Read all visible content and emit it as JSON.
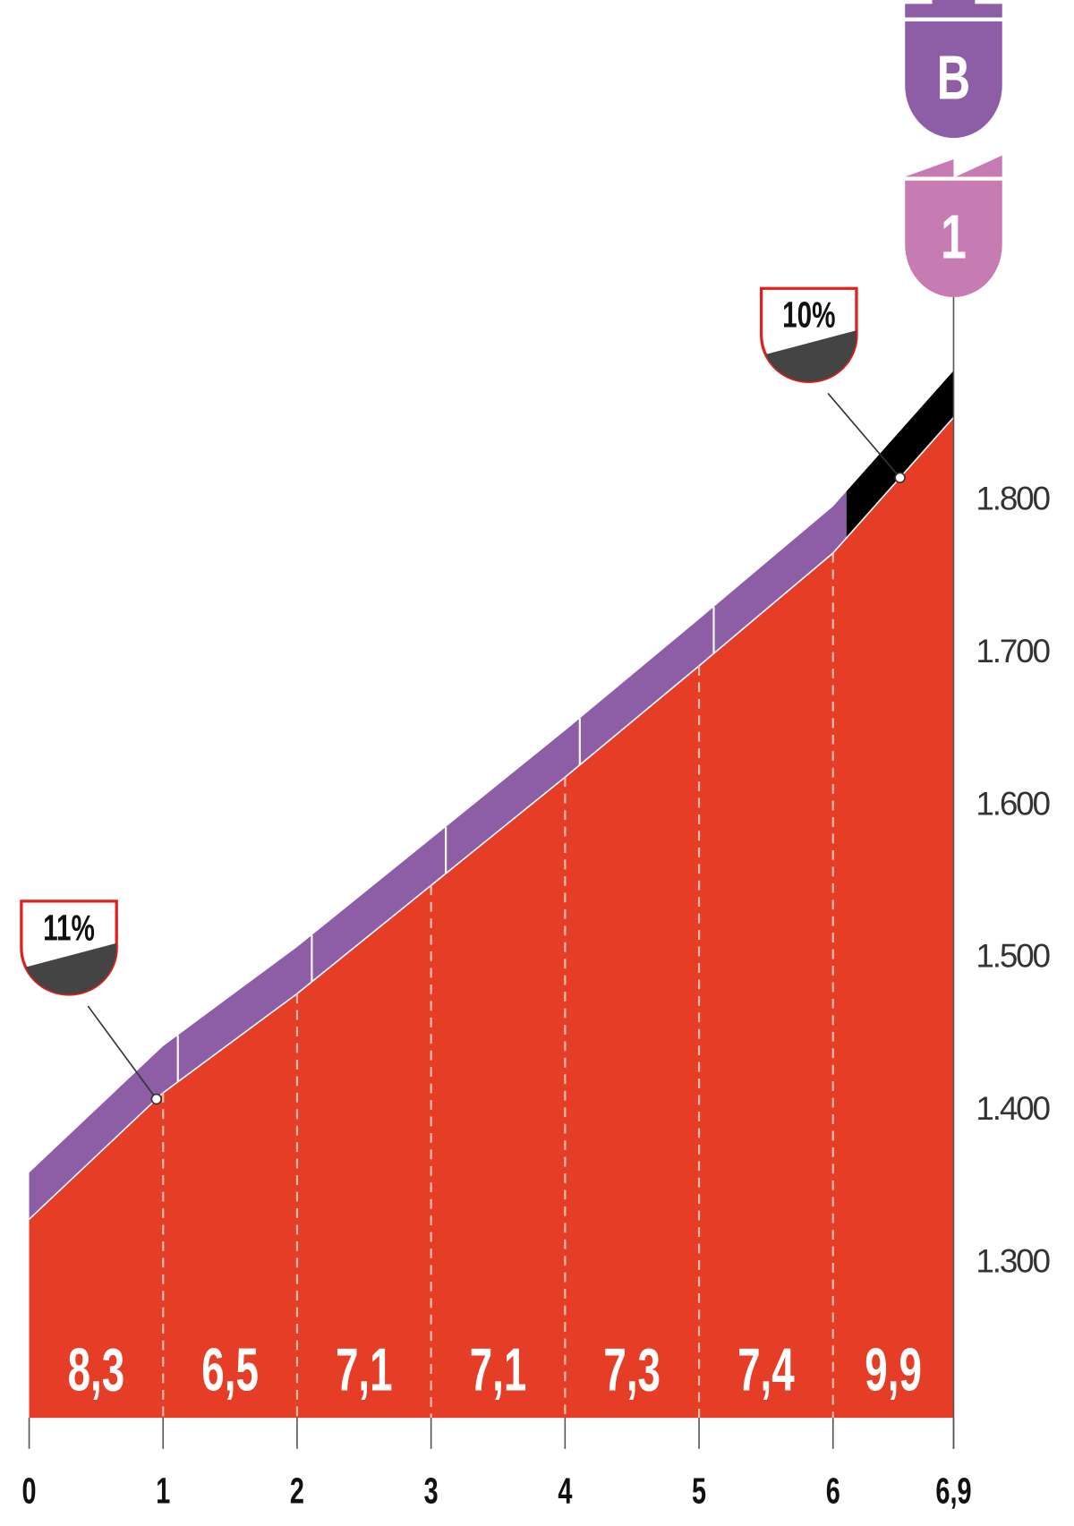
{
  "chart_data": {
    "type": "area",
    "title": "",
    "xlabel": "",
    "ylabel": "",
    "x_ticks": [
      "0",
      "1",
      "2",
      "3",
      "4",
      "5",
      "6",
      "6,9"
    ],
    "x_values": [
      0,
      1,
      2,
      3,
      4,
      5,
      6,
      6.9
    ],
    "y_ticks": [
      "1.300",
      "1.400",
      "1.500",
      "1.600",
      "1.700",
      "1.800"
    ],
    "y_tick_values": [
      1300,
      1400,
      1500,
      1600,
      1700,
      1800
    ],
    "ylim": [
      1200,
      1900
    ],
    "xlim": [
      0,
      6.9
    ],
    "elevation": [
      1327,
      1410,
      1475,
      1546,
      1617,
      1690,
      1764,
      1853
    ],
    "segments": [
      {
        "from": 0,
        "to": 1,
        "gradient": "8,3"
      },
      {
        "from": 1,
        "to": 2,
        "gradient": "6,5"
      },
      {
        "from": 2,
        "to": 3,
        "gradient": "7,1"
      },
      {
        "from": 3,
        "to": 4,
        "gradient": "7,1"
      },
      {
        "from": 4,
        "to": 5,
        "gradient": "7,3"
      },
      {
        "from": 5,
        "to": 6,
        "gradient": "7,4"
      },
      {
        "from": 6,
        "to": 6.9,
        "gradient": "9,9"
      }
    ],
    "annotations": [
      {
        "label": "11%",
        "km": 0.95
      },
      {
        "label": "10%",
        "km": 6.5
      }
    ],
    "summit_badges": [
      "B",
      "1"
    ],
    "colors": {
      "profile": "#e53d26",
      "band": "#8d5da6",
      "steep_band": "#000000",
      "badge_b": "#8d5da6",
      "badge_1": "#c77bb3",
      "annotation_border": "#e0201a",
      "annotation_fill": "#444444"
    }
  }
}
